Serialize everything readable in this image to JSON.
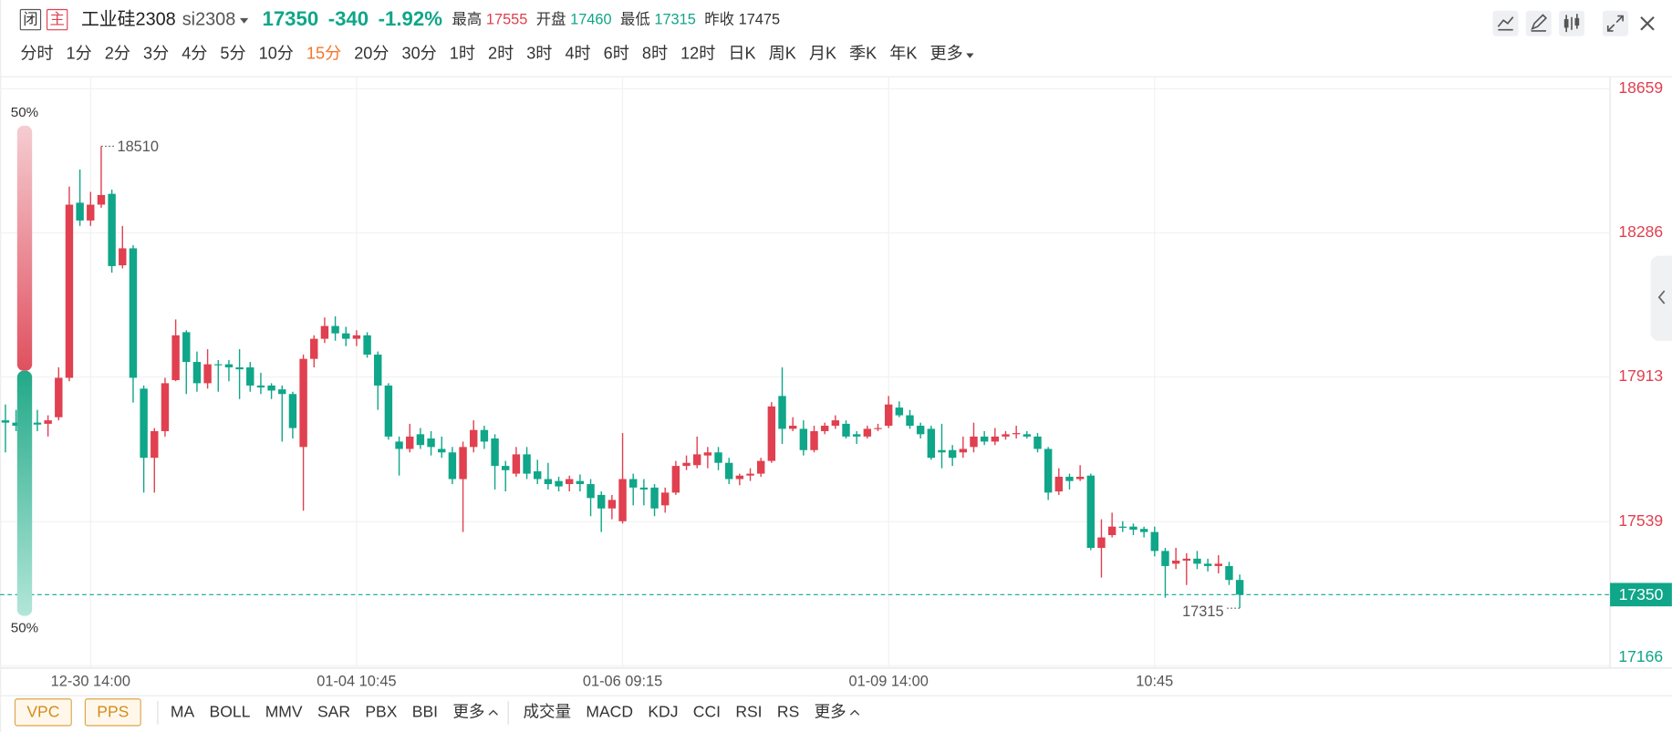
{
  "header": {
    "status": "闭",
    "main": "主",
    "name": "工业硅2308",
    "code": "si2308",
    "price": 17350,
    "change": -340,
    "change_pct": "-1.92%",
    "stats": [
      {
        "label": "最高",
        "value": 17555
      },
      {
        "label": "开盘",
        "value": 17460
      },
      {
        "label": "最低",
        "value": 17315
      },
      {
        "label": "昨收",
        "value": 17475
      }
    ]
  },
  "periods": [
    "分时",
    "1分",
    "2分",
    "3分",
    "4分",
    "5分",
    "10分",
    "15分",
    "20分",
    "30分",
    "1时",
    "2时",
    "3时",
    "4时",
    "6时",
    "8时",
    "12时",
    "日K",
    "周K",
    "月K",
    "季K",
    "年K",
    "更多"
  ],
  "active_period": "15分",
  "indicators": {
    "boxed": [
      "VPC",
      "PPS"
    ],
    "main": [
      "MA",
      "BOLL",
      "MMV",
      "SAR",
      "PBX",
      "BBI",
      "更多"
    ],
    "sub": [
      "成交量",
      "MACD",
      "KDJ",
      "CCI",
      "RSI",
      "RS",
      "更多"
    ]
  },
  "chart_data": {
    "type": "candlestick",
    "categories": [
      null,
      null,
      null,
      null,
      null,
      null,
      null,
      null,
      "12-30 14:00",
      null,
      null,
      null,
      null,
      null,
      null,
      null,
      null,
      null,
      null,
      null,
      null,
      null,
      null,
      null,
      null,
      null,
      null,
      null,
      null,
      null,
      null,
      null,
      null,
      "01-04 10:45",
      null,
      null,
      null,
      null,
      null,
      null,
      null,
      null,
      null,
      null,
      null,
      null,
      null,
      null,
      null,
      null,
      null,
      null,
      null,
      null,
      null,
      null,
      null,
      null,
      "01-06 09:15",
      null,
      null,
      null,
      null,
      null,
      null,
      null,
      null,
      null,
      null,
      null,
      null,
      null,
      null,
      null,
      null,
      null,
      null,
      null,
      null,
      null,
      null,
      null,
      null,
      "01-09 14:00",
      null,
      null,
      null,
      null,
      null,
      null,
      null,
      null,
      null,
      null,
      null,
      null,
      null,
      null,
      null,
      null,
      null,
      null,
      null,
      null,
      null,
      null,
      null,
      null,
      "10:45",
      null,
      null,
      null,
      null,
      null,
      null,
      null,
      null
    ],
    "open": [
      17801,
      17795,
      17809,
      17795,
      17792,
      17809,
      17911,
      18364,
      18318,
      18359,
      18387,
      18202,
      18246,
      17883,
      17704,
      17773,
      17905,
      18029,
      17952,
      17897,
      17946,
      17946,
      17938,
      17938,
      17891,
      17891,
      17881,
      17869,
      17732,
      17960,
      18012,
      18045,
      18026,
      18012,
      18021,
      17971,
      17891,
      17746,
      17727,
      17765,
      17754,
      17727,
      17718,
      17649,
      17732,
      17776,
      17754,
      17683,
      17663,
      17713,
      17669,
      17649,
      17644,
      17636,
      17644,
      17636,
      17608,
      17573,
      17540,
      17649,
      17627,
      17627,
      17581,
      17614,
      17683,
      17685,
      17710,
      17718,
      17691,
      17649,
      17658,
      17663,
      17696,
      17864,
      17779,
      17779,
      17724,
      17773,
      17787,
      17792,
      17765,
      17759,
      17779,
      17787,
      17834,
      17814,
      17787,
      17779,
      17724,
      17724,
      17718,
      17732,
      17759,
      17746,
      17759,
      17765,
      17765,
      17759,
      17727,
      17617,
      17655,
      17649,
      17658,
      17471,
      17504,
      17526,
      17526,
      17520,
      17512,
      17463,
      17430,
      17438,
      17443,
      17430,
      17424,
      17424,
      17388
    ],
    "high": [
      17842,
      17828,
      17883,
      17828,
      17814,
      17938,
      18406,
      18450,
      18392,
      18510,
      18398,
      18304,
      18254,
      17891,
      17781,
      17911,
      18062,
      18034,
      17979,
      17985,
      17957,
      17957,
      17985,
      17952,
      17924,
      17897,
      17891,
      17875,
      17971,
      18021,
      18067,
      18070,
      18043,
      18034,
      18029,
      17979,
      17897,
      17759,
      17792,
      17781,
      17773,
      17759,
      17732,
      17746,
      17801,
      17787,
      17765,
      17696,
      17732,
      17732,
      17699,
      17691,
      17655,
      17658,
      17661,
      17649,
      17617,
      17608,
      17768,
      17663,
      17649,
      17636,
      17627,
      17696,
      17710,
      17759,
      17732,
      17732,
      17704,
      17663,
      17677,
      17704,
      17848,
      17938,
      17809,
      17801,
      17787,
      17795,
      17814,
      17801,
      17773,
      17787,
      17792,
      17864,
      17850,
      17828,
      17795,
      17787,
      17792,
      17737,
      17759,
      17795,
      17773,
      17781,
      17773,
      17787,
      17773,
      17768,
      17732,
      17677,
      17663,
      17685,
      17663,
      17545,
      17562,
      17540,
      17534,
      17526,
      17526,
      17471,
      17471,
      17457,
      17463,
      17443,
      17452,
      17435,
      17402
    ],
    "low": [
      17718,
      17773,
      17746,
      17773,
      17759,
      17801,
      17902,
      18304,
      18304,
      18351,
      18183,
      18194,
      17847,
      17614,
      17614,
      17759,
      17902,
      17869,
      17875,
      17883,
      17875,
      17902,
      17856,
      17875,
      17869,
      17856,
      17746,
      17754,
      17567,
      17938,
      18001,
      18007,
      17993,
      17993,
      17963,
      17828,
      17751,
      17658,
      17718,
      17727,
      17710,
      17704,
      17636,
      17512,
      17718,
      17727,
      17622,
      17617,
      17655,
      17649,
      17636,
      17622,
      17617,
      17617,
      17617,
      17553,
      17512,
      17545,
      17534,
      17581,
      17581,
      17553,
      17562,
      17608,
      17672,
      17677,
      17677,
      17672,
      17636,
      17633,
      17644,
      17655,
      17691,
      17740,
      17773,
      17710,
      17718,
      17765,
      17779,
      17754,
      17740,
      17754,
      17773,
      17781,
      17809,
      17779,
      17754,
      17699,
      17677,
      17683,
      17704,
      17718,
      17737,
      17737,
      17751,
      17754,
      17754,
      17718,
      17595,
      17608,
      17622,
      17644,
      17465,
      17394,
      17498,
      17512,
      17504,
      17498,
      17449,
      17342,
      17416,
      17375,
      17416,
      17410,
      17405,
      17375,
      17315
    ],
    "close": [
      17795,
      17787,
      17781,
      17790,
      17801,
      17911,
      18359,
      18318,
      18359,
      18384,
      18200,
      18246,
      17911,
      17704,
      17773,
      17897,
      18021,
      17952,
      17897,
      17946,
      17944,
      17938,
      17933,
      17891,
      17886,
      17878,
      17869,
      17781,
      17960,
      18012,
      18045,
      18026,
      18012,
      18021,
      17971,
      17891,
      17759,
      17727,
      17759,
      17737,
      17732,
      17718,
      17649,
      17732,
      17776,
      17746,
      17683,
      17672,
      17713,
      17663,
      17649,
      17636,
      17630,
      17649,
      17636,
      17600,
      17573,
      17595,
      17649,
      17627,
      17622,
      17573,
      17614,
      17683,
      17691,
      17713,
      17718,
      17691,
      17649,
      17658,
      17663,
      17696,
      17837,
      17779,
      17787,
      17724,
      17773,
      17787,
      17801,
      17759,
      17759,
      17779,
      17781,
      17842,
      17814,
      17787,
      17765,
      17704,
      17718,
      17704,
      17727,
      17759,
      17746,
      17759,
      17765,
      17768,
      17759,
      17727,
      17614,
      17655,
      17644,
      17655,
      17471,
      17498,
      17526,
      17523,
      17518,
      17512,
      17463,
      17424,
      17438,
      17443,
      17430,
      17424,
      17430,
      17388,
      17350
    ],
    "up_color": "#e0404f",
    "down_color": "#0fa689",
    "ylim": [
      17160,
      18690
    ],
    "yticks": [
      18659,
      18286,
      17913,
      17539,
      17166
    ],
    "grid": true,
    "prev_close": 17475,
    "last_price": 17350,
    "max_marker": 18510,
    "min_marker": 17315,
    "ratio": {
      "values": [
        50,
        50
      ],
      "value_labels": [
        "50%",
        "50%"
      ]
    }
  }
}
